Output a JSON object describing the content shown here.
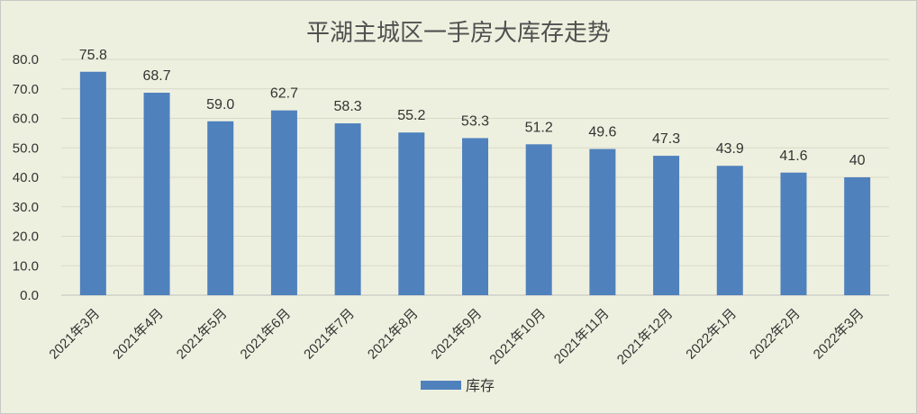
{
  "chart_data": {
    "type": "bar",
    "title": "平湖主城区一手房大库存走势",
    "categories": [
      "2021年3月",
      "2021年4月",
      "2021年5月",
      "2021年6月",
      "2021年7月",
      "2021年8月",
      "2021年9月",
      "2021年10月",
      "2021年11月",
      "2021年12月",
      "2022年1月",
      "2022年2月",
      "2022年3月"
    ],
    "series": [
      {
        "name": "库存",
        "values": [
          75.8,
          68.7,
          59.0,
          62.7,
          58.3,
          55.2,
          53.3,
          51.2,
          49.6,
          47.3,
          43.9,
          41.6,
          40
        ]
      }
    ],
    "data_labels": [
      "75.8",
      "68.7",
      "59.0",
      "62.7",
      "58.3",
      "55.2",
      "53.3",
      "51.2",
      "49.6",
      "47.3",
      "43.9",
      "41.6",
      "40"
    ],
    "y_ticks": [
      "0.0",
      "10.0",
      "20.0",
      "30.0",
      "40.0",
      "50.0",
      "60.0",
      "70.0",
      "80.0"
    ],
    "ylim": [
      0,
      80
    ],
    "xlabel": "",
    "ylabel": "",
    "grid": true,
    "legend_position": "bottom",
    "colors": {
      "bar": "#4f81bd",
      "background": "#eef0df",
      "grid": "#d9d9c8"
    }
  }
}
